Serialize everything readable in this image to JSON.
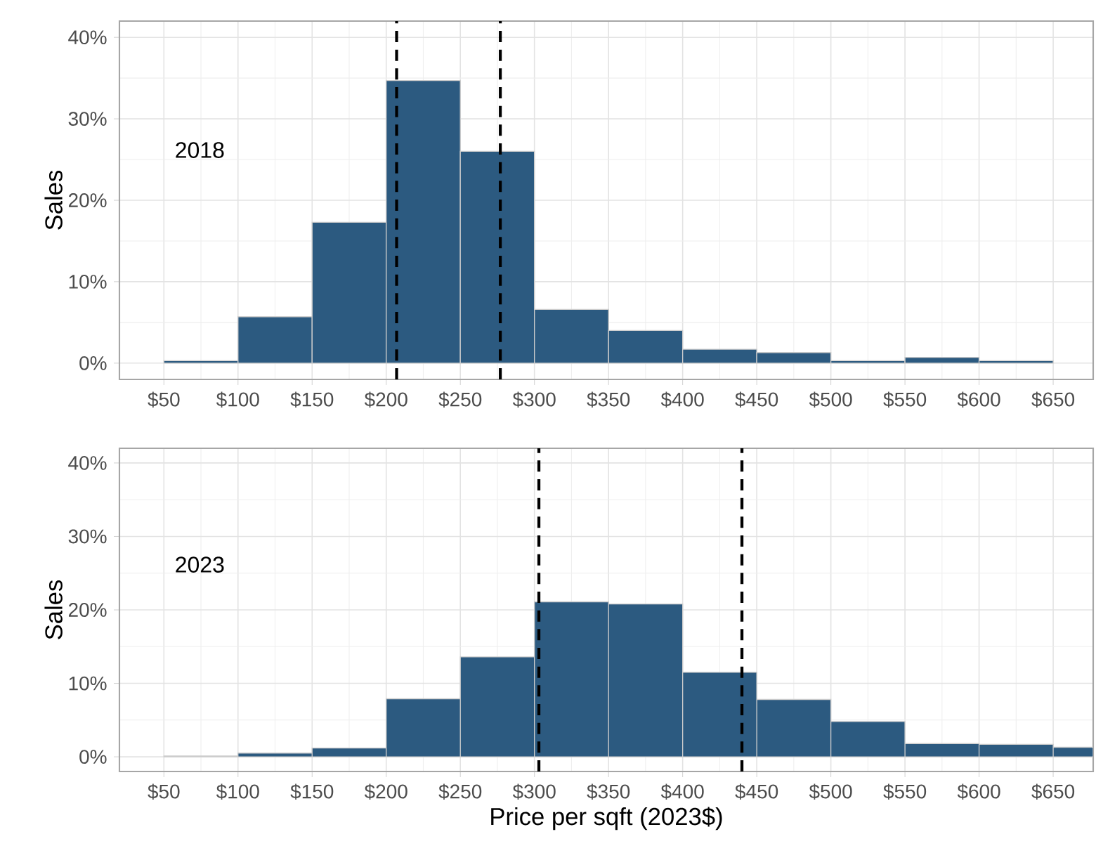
{
  "chart_data": [
    {
      "type": "histogram",
      "ylabel": "Sales",
      "annotations": [
        "2018"
      ],
      "color": "#2c5a80",
      "bins": [
        50,
        100,
        150,
        200,
        250,
        300,
        350,
        400,
        450,
        500,
        550,
        600,
        650
      ],
      "values": [
        0.3,
        5.7,
        17.3,
        34.7,
        26.0,
        6.6,
        4.0,
        1.7,
        1.3,
        0.3,
        0.7,
        0.3
      ],
      "xlim": [
        20,
        677
      ],
      "ylim": [
        -2,
        42
      ],
      "xticks": [
        {
          "value": 50,
          "label": "$50"
        },
        {
          "value": 100,
          "label": "$100"
        },
        {
          "value": 150,
          "label": "$150"
        },
        {
          "value": 200,
          "label": "$200"
        },
        {
          "value": 250,
          "label": "$250"
        },
        {
          "value": 300,
          "label": "$300"
        },
        {
          "value": 350,
          "label": "$350"
        },
        {
          "value": 400,
          "label": "$400"
        },
        {
          "value": 450,
          "label": "$450"
        },
        {
          "value": 500,
          "label": "$500"
        },
        {
          "value": 550,
          "label": "$550"
        },
        {
          "value": 600,
          "label": "$600"
        },
        {
          "value": 650,
          "label": "$650"
        }
      ],
      "yticks": [
        {
          "value": 0,
          "label": "0%"
        },
        {
          "value": 10,
          "label": "10%"
        },
        {
          "value": 20,
          "label": "20%"
        },
        {
          "value": 30,
          "label": "30%"
        },
        {
          "value": 40,
          "label": "40%"
        }
      ],
      "grid": true,
      "ref_lines": [
        {
          "axis": "x",
          "value": 207,
          "color": "#000000",
          "line_style": "dashed"
        },
        {
          "axis": "x",
          "value": 277,
          "color": "#000000",
          "line_style": "dashed"
        }
      ]
    },
    {
      "type": "histogram",
      "ylabel": "Sales",
      "xlabel": "Price per sqft (2023$)",
      "annotations": [
        "2023"
      ],
      "color": "#2c5a80",
      "bins": [
        50,
        100,
        150,
        200,
        250,
        300,
        350,
        400,
        450,
        500,
        550,
        600,
        650,
        677
      ],
      "values": [
        0.1,
        0.5,
        1.2,
        7.9,
        13.6,
        21.1,
        20.8,
        11.5,
        7.8,
        4.8,
        1.8,
        1.7,
        1.3
      ],
      "xlim": [
        20,
        677
      ],
      "ylim": [
        -2,
        42
      ],
      "xticks": [
        {
          "value": 50,
          "label": "$50"
        },
        {
          "value": 100,
          "label": "$100"
        },
        {
          "value": 150,
          "label": "$150"
        },
        {
          "value": 200,
          "label": "$200"
        },
        {
          "value": 250,
          "label": "$250"
        },
        {
          "value": 300,
          "label": "$300"
        },
        {
          "value": 350,
          "label": "$350"
        },
        {
          "value": 400,
          "label": "$400"
        },
        {
          "value": 450,
          "label": "$450"
        },
        {
          "value": 500,
          "label": "$500"
        },
        {
          "value": 550,
          "label": "$550"
        },
        {
          "value": 600,
          "label": "$600"
        },
        {
          "value": 650,
          "label": "$650"
        }
      ],
      "yticks": [
        {
          "value": 0,
          "label": "0%"
        },
        {
          "value": 10,
          "label": "10%"
        },
        {
          "value": 20,
          "label": "20%"
        },
        {
          "value": 30,
          "label": "30%"
        },
        {
          "value": 40,
          "label": "40%"
        }
      ],
      "grid": true,
      "ref_lines": [
        {
          "axis": "x",
          "value": 303,
          "color": "#000000",
          "line_style": "dashed"
        },
        {
          "axis": "x",
          "value": 440,
          "color": "#000000",
          "line_style": "dashed"
        }
      ]
    }
  ]
}
